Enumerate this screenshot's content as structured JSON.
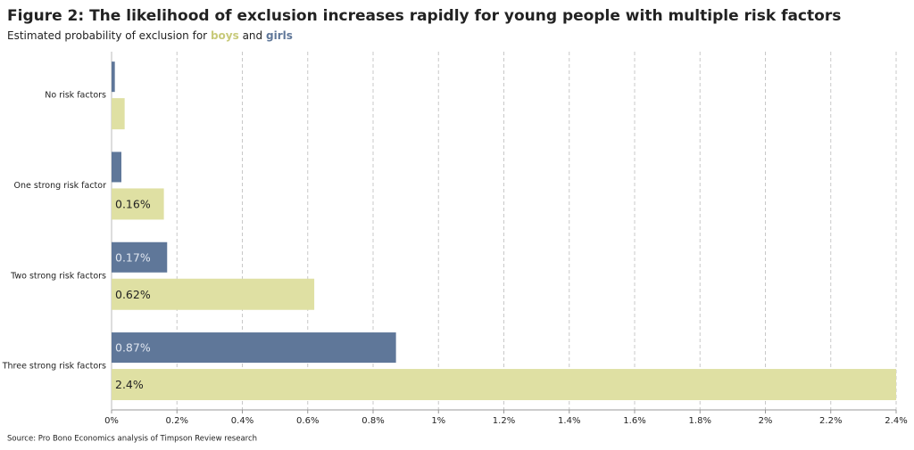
{
  "chart_data": {
    "type": "hbar",
    "title": "Figure 2: The likelihood of exclusion increases rapidly for young people with multiple risk factors",
    "subtitle": "Estimated probability of exclusion for",
    "subtitle_and": "and",
    "source": "Source: Pro Bono Economics analysis of Timpson Review research",
    "categories": [
      "No risk factors",
      "One strong risk factor",
      "Two strong risk factors",
      "Three strong risk factors"
    ],
    "series": [
      {
        "name": "girls",
        "color": "#5f7799",
        "values": [
          0.01,
          0.03,
          0.17,
          0.87
        ],
        "value_labels": [
          null,
          null,
          "0.17%",
          "0.87%"
        ]
      },
      {
        "name": "boys",
        "color": "#dfe0a3",
        "values": [
          0.04,
          0.16,
          0.62,
          2.4
        ],
        "value_labels": [
          null,
          "0.16%",
          "0.62%",
          "2.4%"
        ]
      }
    ],
    "xlim": [
      0,
      2.4
    ],
    "xticks": [
      {
        "value": 0,
        "label": "0%"
      },
      {
        "value": 0.2,
        "label": "0.2%"
      },
      {
        "value": 0.4,
        "label": "0.4%"
      },
      {
        "value": 0.6,
        "label": "0.6%"
      },
      {
        "value": 0.8,
        "label": "0.8%"
      },
      {
        "value": 1,
        "label": "1%"
      },
      {
        "value": 1.2,
        "label": "1.2%"
      },
      {
        "value": 1.4,
        "label": "1.4%"
      },
      {
        "value": 1.6,
        "label": "1.6%"
      },
      {
        "value": 1.8,
        "label": "1.8%"
      },
      {
        "value": 2,
        "label": "2%"
      },
      {
        "value": 2.2,
        "label": "2.2%"
      },
      {
        "value": 2.4,
        "label": "2.4%"
      }
    ],
    "grid": true
  }
}
